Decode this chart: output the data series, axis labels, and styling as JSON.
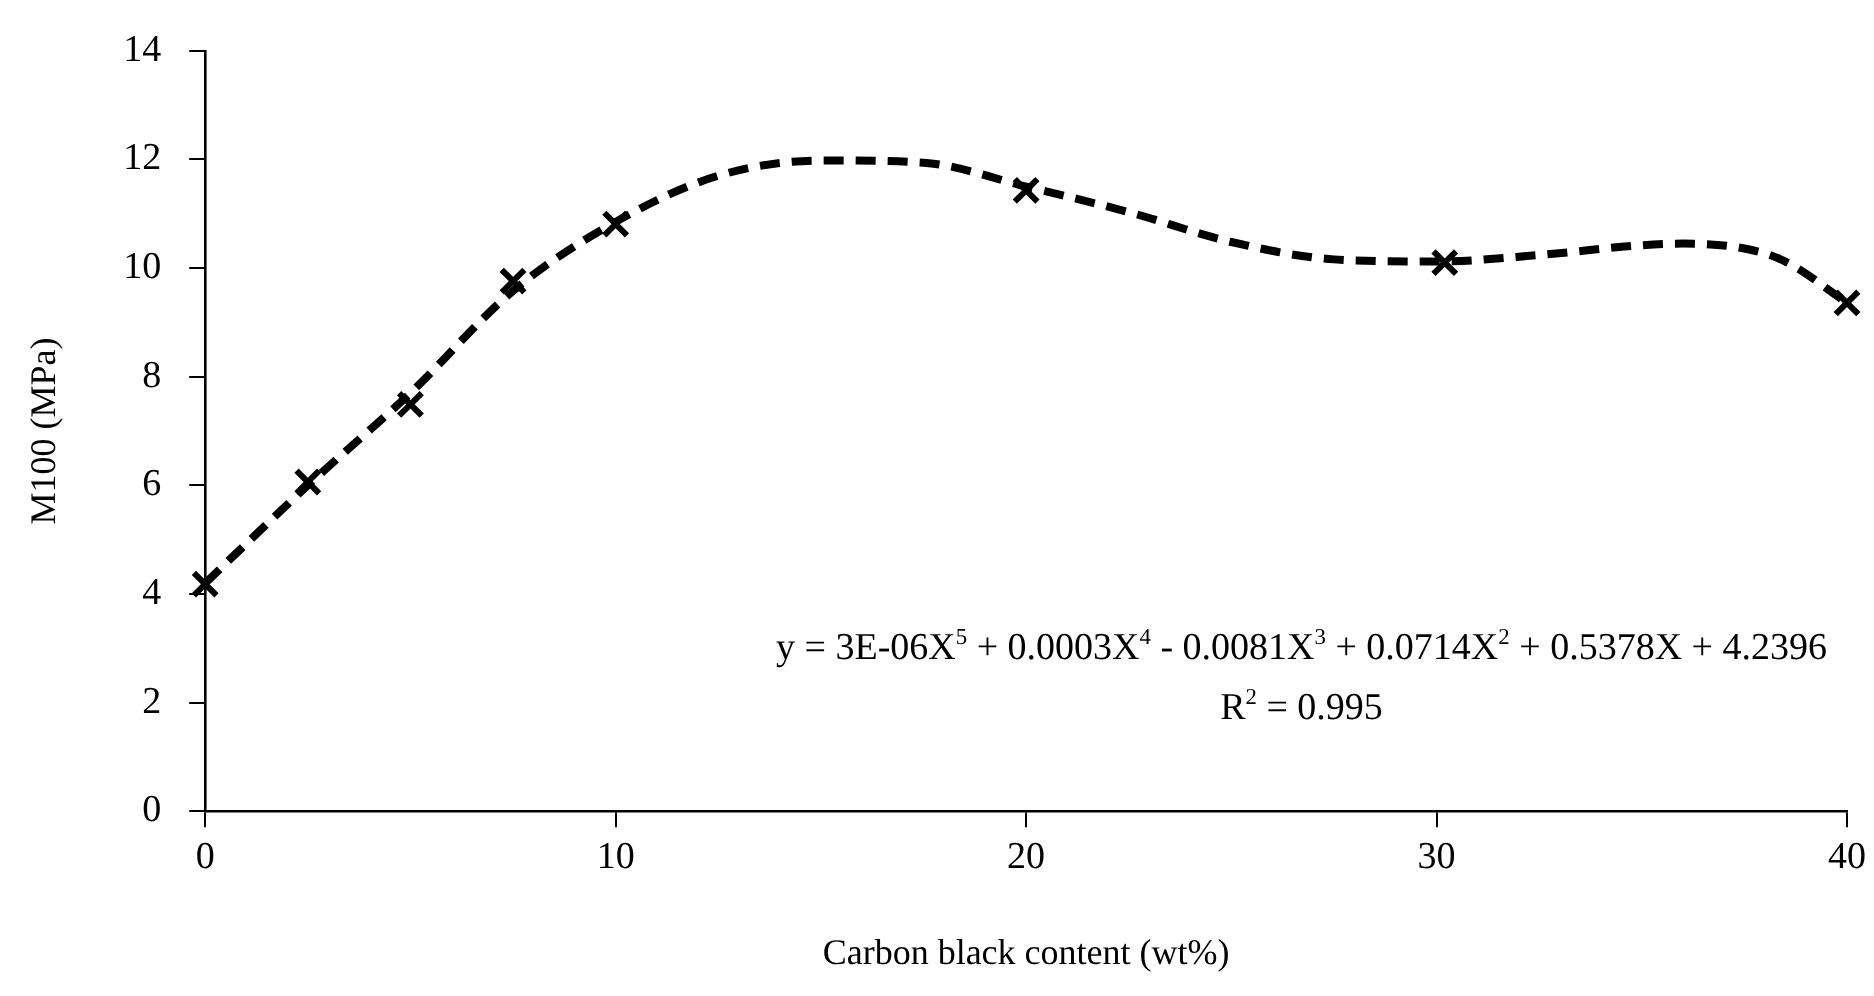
{
  "chart_data": {
    "type": "scatter",
    "xlabel": "Carbon black content (wt%)",
    "ylabel": "M100 (MPa)",
    "xlim": [
      0,
      40
    ],
    "xticks": [
      0,
      10,
      20,
      30,
      40
    ],
    "ylim": [
      0,
      14
    ],
    "yticks": [
      0,
      2,
      4,
      6,
      8,
      10,
      12,
      14
    ],
    "grid": false,
    "legend": false,
    "series": [
      {
        "type": "scatter",
        "color": "#000000",
        "marker": "cross",
        "x": [
          0,
          2.5,
          5,
          7.5,
          10,
          20,
          30.2,
          40
        ],
        "values": [
          4.18,
          6.06,
          7.49,
          9.76,
          10.81,
          11.43,
          10.1,
          9.36
        ]
      },
      {
        "type": "line",
        "color": "#000000",
        "marker": "none",
        "line_style": "dashed",
        "x": [
          0,
          2.5,
          5,
          7.5,
          10,
          12.5,
          15,
          17.5,
          20,
          22.5,
          25,
          27.5,
          30,
          32.5,
          35,
          36,
          37.5,
          38.5,
          40
        ],
        "values": [
          4.2,
          6.0,
          7.7,
          9.58,
          10.85,
          11.7,
          11.98,
          11.94,
          11.5,
          11.03,
          10.48,
          10.16,
          10.12,
          10.24,
          10.42,
          10.45,
          10.36,
          10.12,
          9.36
        ]
      }
    ],
    "annotations": [
      "y = 3E-06X$^{5}$ + 0.0003X$^{4}$ - 0.0081X$^{3}$ + 0.0714X$^{2}$ + 0.5378X + 4.2396",
      "R$^{2}$ = 0.995"
    ]
  }
}
